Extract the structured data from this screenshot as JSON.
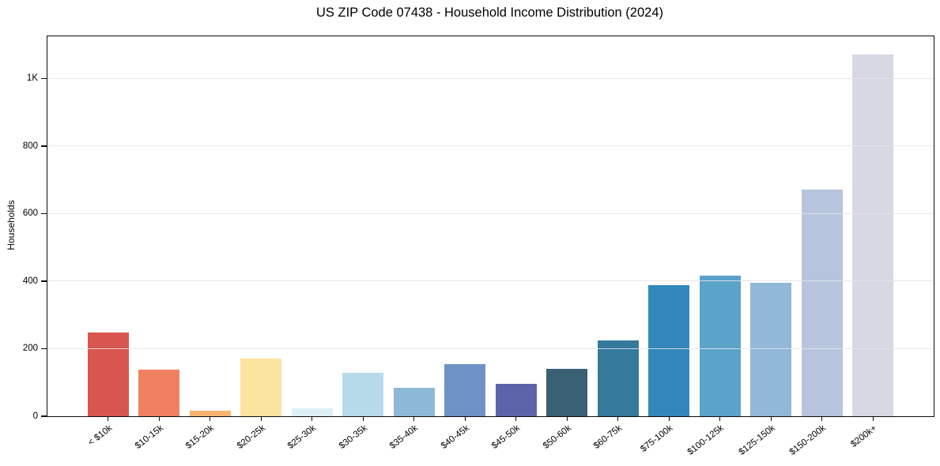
{
  "page": {
    "background": "#ffffff",
    "kind": "matplotlib-style bar chart figure"
  },
  "chart_data": {
    "type": "bar",
    "title": "US ZIP Code 07438 - Household Income Distribution (2024)",
    "xlabel": "",
    "ylabel": "Households",
    "categories": [
      "< $10k",
      "$10-15k",
      "$15-20k",
      "$20-25k",
      "$25-30k",
      "$30-35k",
      "$35-40k",
      "$40-45k",
      "$45-50k",
      "$50-60k",
      "$60-75k",
      "$75-100k",
      "$100-125k",
      "$125-150k",
      "$150-200k",
      "$200k+"
    ],
    "values": [
      247,
      138,
      16,
      171,
      24,
      128,
      84,
      155,
      95,
      141,
      224,
      388,
      416,
      395,
      672,
      1071
    ],
    "bar_colors": [
      "#d8564f",
      "#f08160",
      "#f6b26e",
      "#fbe3a0",
      "#ddeef5",
      "#b7daea",
      "#8db9d7",
      "#6e92c5",
      "#5d63a9",
      "#3a6173",
      "#35799d",
      "#3387bd",
      "#5ba3c9",
      "#92b8d8",
      "#b6c5dd",
      "#d8d8e4"
    ],
    "ylim": [
      0,
      1125
    ],
    "yticks": [
      {
        "value": 0,
        "label": "0"
      },
      {
        "value": 200,
        "label": "200"
      },
      {
        "value": 400,
        "label": "400"
      },
      {
        "value": 600,
        "label": "600"
      },
      {
        "value": 800,
        "label": "800"
      },
      {
        "value": 1000,
        "label": "1K"
      }
    ],
    "grid": "horizontal, drawn over bars",
    "legend": "none",
    "x_tick_rotation_deg": 38,
    "spine_color": "#0d0d0d",
    "gridline_color": "#e4e4e8"
  }
}
